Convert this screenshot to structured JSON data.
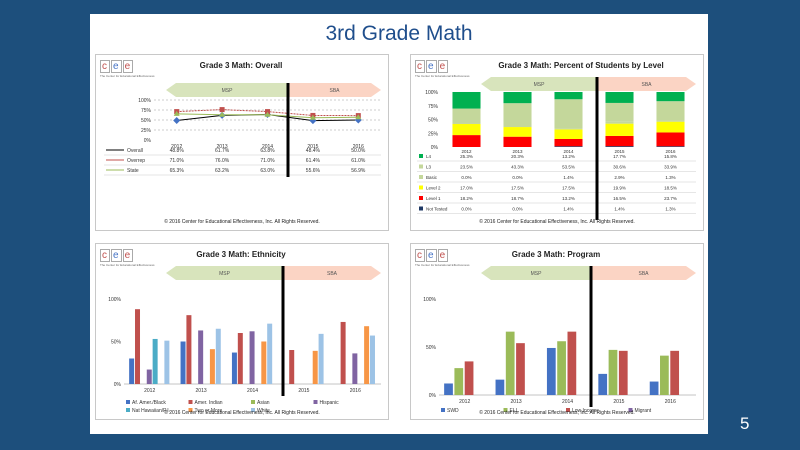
{
  "slide": {
    "title": "3rd Grade Math",
    "page_number": "5"
  },
  "brand": {
    "logo_letters": [
      "c",
      "e",
      "e"
    ],
    "tagline": "The Center for Educational Effectiveness"
  },
  "arrows": {
    "left": "MSP",
    "right": "SBA"
  },
  "copyright": "© 2016 Center for Educational Effectiveness, Inc. All Rights Reserved.",
  "colors": {
    "overall": "#4472c4",
    "overall_line": "#000000",
    "overall_marker": "#4472c4",
    "overrep": "#c0504d",
    "state": "#9bbb59",
    "l4": "#00b050",
    "l3": "#c4d79b",
    "basic": "#c4d79b",
    "level2": "#ffff00",
    "level1": "#ff0000",
    "not_tested": "#1f3864"
  },
  "chart_data": [
    {
      "type": "line",
      "title": "Grade 3 Math: Overall",
      "x": [
        "2012",
        "2013",
        "2014",
        "2015",
        "2016"
      ],
      "ylim": [
        0,
        100
      ],
      "yticks": [
        "0%",
        "25%",
        "50%",
        "75%",
        "100%"
      ],
      "series": [
        {
          "name": "Overall",
          "values": [
            48.8,
            61.7,
            63.8,
            48.4,
            50.0
          ],
          "labels": [
            "48.8%",
            "61.7%",
            "63.8%",
            "48.4%",
            "50.0%"
          ]
        },
        {
          "name": "Overrep",
          "values": [
            71.0,
            76.0,
            71.0,
            61.4,
            61.0
          ],
          "labels": [
            "71.0%",
            "76.0%",
            "71.0%",
            "61.4%",
            "61.0%"
          ]
        },
        {
          "name": "State",
          "values": [
            65.3,
            63.2,
            63.0,
            55.6,
            56.9
          ],
          "labels": [
            "65.3%",
            "63.2%",
            "63.0%",
            "55.6%",
            "56.9%"
          ]
        }
      ]
    },
    {
      "type": "bar",
      "stacked": true,
      "title": "Grade 3 Math: Percent of Students by Level",
      "x": [
        "2012",
        "2013",
        "2014",
        "2015",
        "2016"
      ],
      "ylim": [
        0,
        100
      ],
      "yticks": [
        "0%",
        "25%",
        "50%",
        "75%",
        "100%"
      ],
      "series": [
        {
          "name": "L4",
          "values": [
            25.3,
            20.3,
            13.2,
            17.7,
            15.8
          ],
          "labels": [
            "25.3%",
            "20.3%",
            "13.2%",
            "17.7%",
            "15.8%"
          ]
        },
        {
          "name": "L3",
          "values": [
            23.5,
            43.3,
            53.5,
            30.6,
            33.9
          ],
          "labels": [
            "23.5%",
            "43.3%",
            "53.5%",
            "30.6%",
            "33.9%"
          ]
        },
        {
          "name": "Basic",
          "values": [
            0.0,
            0.0,
            1.4,
            2.9,
            1.3
          ],
          "labels": [
            "0.0%",
            "0.0%",
            "1.4%",
            "2.9%",
            "1.3%"
          ]
        },
        {
          "name": "Level 2",
          "values": [
            17.0,
            17.5,
            17.5,
            19.9,
            18.5
          ],
          "labels": [
            "17.0%",
            "17.5%",
            "17.5%",
            "19.9%",
            "18.5%"
          ]
        },
        {
          "name": "Level 1",
          "values": [
            18.2,
            18.7,
            13.2,
            16.5,
            23.7
          ],
          "labels": [
            "18.2%",
            "18.7%",
            "13.2%",
            "16.5%",
            "23.7%"
          ]
        },
        {
          "name": "Not Tested",
          "values": [
            0.0,
            0.0,
            1.4,
            1.4,
            1.3
          ],
          "labels": [
            "0.0%",
            "0.0%",
            "1.4%",
            "1.4%",
            "1.3%"
          ]
        }
      ]
    },
    {
      "type": "bar",
      "title": "Grade 3 Math: Ethnicity",
      "x": [
        "2012",
        "2013",
        "2014",
        "2015",
        "2016"
      ],
      "ylim": [
        0,
        100
      ],
      "yticks": [
        "0%",
        "50%",
        "100%"
      ],
      "series": [
        {
          "name": "Af. Amer./Black",
          "color": "#4472c4",
          "values": [
            30,
            50,
            37,
            0,
            0
          ]
        },
        {
          "name": "Amer. Indian",
          "color": "#c0504d",
          "values": [
            88,
            81,
            60,
            40,
            73
          ]
        },
        {
          "name": "Asian",
          "color": "#9bbb59",
          "values": [
            0,
            0,
            0,
            0,
            0
          ]
        },
        {
          "name": "Hispanic",
          "color": "#8064a2",
          "values": [
            17,
            63,
            62,
            0,
            36
          ]
        },
        {
          "name": "Nat Hawaiian/P.I.",
          "color": "#4bacc6",
          "values": [
            53,
            0,
            0,
            0,
            0
          ]
        },
        {
          "name": "Two or More",
          "color": "#f79646",
          "values": [
            0,
            41,
            50,
            39,
            68
          ]
        },
        {
          "name": "White",
          "color": "#9dc3e6",
          "values": [
            51,
            65,
            71,
            59,
            57
          ]
        }
      ]
    },
    {
      "type": "bar",
      "title": "Grade 3 Math: Program",
      "x": [
        "2012",
        "2013",
        "2014",
        "2015",
        "2016"
      ],
      "ylim": [
        0,
        100
      ],
      "yticks": [
        "0%",
        "50%",
        "100%"
      ],
      "series": [
        {
          "name": "SWD",
          "color": "#4472c4",
          "values": [
            12,
            16,
            49,
            22,
            14
          ]
        },
        {
          "name": "ELL",
          "color": "#9bbb59",
          "values": [
            28,
            66,
            56,
            47,
            41
          ]
        },
        {
          "name": "Low Income",
          "color": "#c0504d",
          "values": [
            35,
            54,
            66,
            46,
            46
          ]
        },
        {
          "name": "Migrant",
          "color": "#8064a2",
          "values": [
            0,
            0,
            0,
            0,
            0
          ]
        }
      ]
    }
  ]
}
